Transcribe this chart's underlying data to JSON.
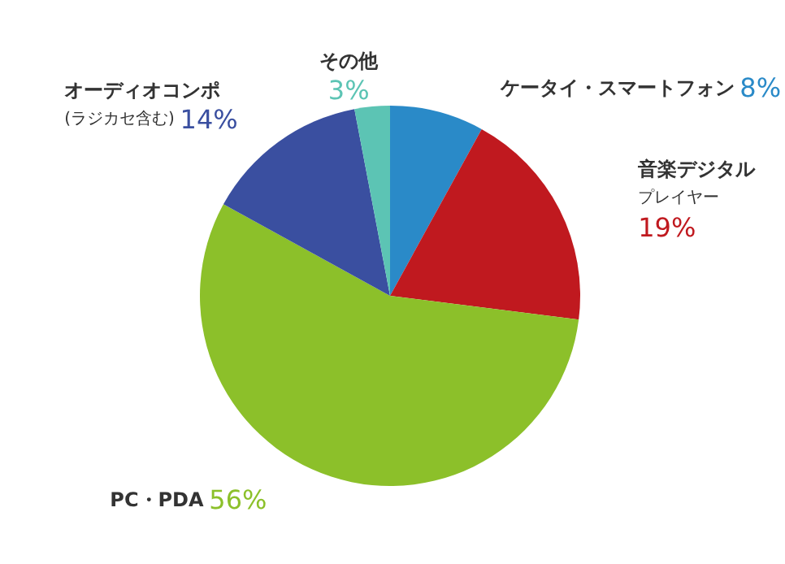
{
  "chart_data": {
    "type": "pie",
    "categories": [
      "ケータイ・スマートフォン",
      "音楽デジタルプレイヤー",
      "PC・PDA",
      "オーディオコンポ(ラジカセ含む)",
      "その他"
    ],
    "values": [
      8,
      19,
      56,
      14,
      3
    ],
    "value_labels": [
      "8%",
      "19%",
      "56%",
      "14%",
      "3%"
    ],
    "colors": [
      "#2a8ac8",
      "#c0191f",
      "#8cc02a",
      "#3a4fa0",
      "#5cc4b4"
    ],
    "legend": false
  }
}
